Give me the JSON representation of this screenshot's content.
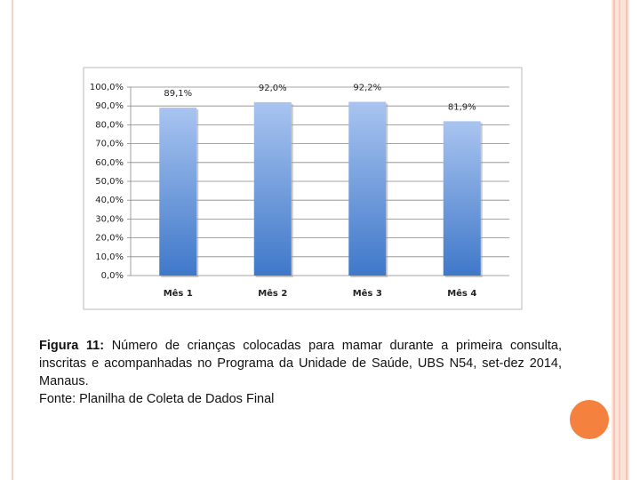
{
  "chart_data": {
    "type": "bar",
    "categories": [
      "Mês 1",
      "Mês 2",
      "Mês 3",
      "Mês 4"
    ],
    "values": [
      89.1,
      92.0,
      92.2,
      81.9
    ],
    "value_labels": [
      "89,1%",
      "92,0%",
      "92,2%",
      "81,9%"
    ],
    "color": "#3f78c9",
    "ylim": [
      0,
      100
    ],
    "yticks": [
      {
        "value": 0,
        "label": "0,0%"
      },
      {
        "value": 10,
        "label": "10,0%"
      },
      {
        "value": 20,
        "label": "20,0%"
      },
      {
        "value": 30,
        "label": "30,0%"
      },
      {
        "value": 40,
        "label": "40,0%"
      },
      {
        "value": 50,
        "label": "50,0%"
      },
      {
        "value": 60,
        "label": "60,0%"
      },
      {
        "value": 70,
        "label": "70,0%"
      },
      {
        "value": 80,
        "label": "80,0%"
      },
      {
        "value": 90,
        "label": "90,0%"
      },
      {
        "value": 100,
        "label": "100,0%"
      }
    ],
    "grid": true
  },
  "caption": {
    "label": "Figura 11:",
    "text": "Número de crianças colocadas para mamar durante a primeira consulta, inscritas e acompanhadas no Programa da Unidade de Saúde, UBS N54, set-dez 2014, Manaus.",
    "source": "Fonte: Planilha de Coleta de Dados Final"
  }
}
